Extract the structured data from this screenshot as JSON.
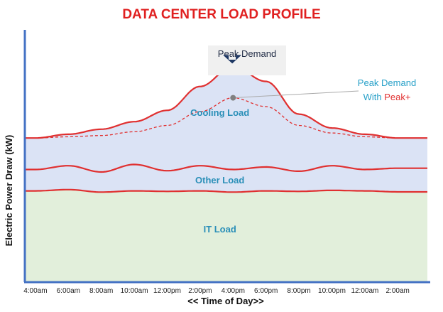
{
  "chart_data": {
    "type": "area",
    "title": "DATA CENTER LOAD PROFILE",
    "ylabel": "Electric Power Draw (kW)",
    "xlabel": "<< Time of Day>>",
    "x": [
      "4:00am",
      "6:00am",
      "8:00am",
      "10:00am",
      "12:00pm",
      "2:00pm",
      "4:00pm",
      "6:00pm",
      "8:00pm",
      "10:00pm",
      "12:00am",
      "2:00am"
    ],
    "x_hours": [
      0,
      2,
      4,
      6,
      8,
      10,
      12,
      14,
      16,
      18,
      20,
      22
    ],
    "xlim": [
      -0.6,
      23.8
    ],
    "ylim": [
      0,
      100
    ],
    "series": [
      {
        "name": "IT Load",
        "values": [
          36.0,
          36.5,
          35.5,
          36.0,
          35.8,
          36.0,
          35.5,
          36.0,
          35.8,
          36.2,
          36.0,
          35.6
        ],
        "fill": "#e2efdb"
      },
      {
        "name": "Other Load",
        "values": [
          44.5,
          46.0,
          43.5,
          46.5,
          44.0,
          46.0,
          44.5,
          45.5,
          43.8,
          46.0,
          44.5,
          45.0
        ],
        "fill": "#dbe3f5"
      },
      {
        "name": "Cooling Load",
        "values": [
          57.0,
          58.5,
          60.5,
          63.5,
          68.0,
          77.5,
          85.5,
          79.5,
          66.5,
          61.0,
          58.5,
          57.0
        ],
        "fill": "#dbe3f5"
      },
      {
        "name": "Peak Demand With Peak+",
        "style": "dashed",
        "values": [
          57.0,
          57.5,
          58.0,
          59.5,
          62.0,
          67.5,
          73.0,
          69.5,
          62.0,
          59.0,
          57.5,
          57.0
        ]
      }
    ],
    "annotations": {
      "peak_box": "Peak Demand",
      "peak_plus_prefix": "Peak Demand",
      "peak_plus_with": "With ",
      "peak_plus_brand": "Peak+"
    },
    "colors": {
      "title": "#e02020",
      "curve": "#e03030",
      "axis": "#4472c4",
      "region_label": "#2a8fb8",
      "callout_text": "#27a0c8",
      "arrow": "#1f3864"
    }
  }
}
